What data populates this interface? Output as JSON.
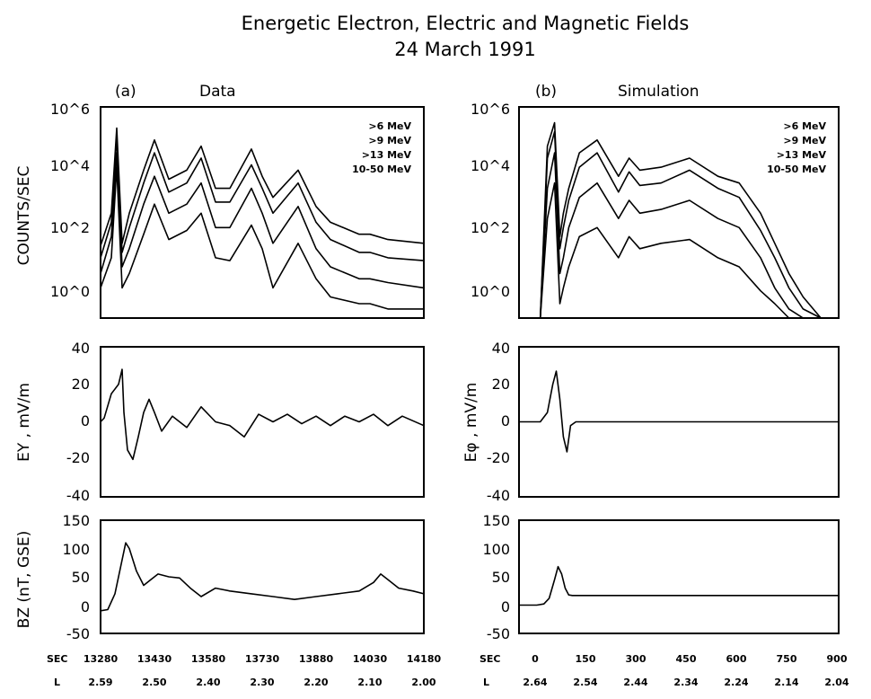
{
  "title_line1": "Energetic Electron, Electric and Magnetic Fields",
  "title_line2": "24 March 1991",
  "column_a": {
    "panel_label": "(a)",
    "heading": "Data"
  },
  "column_b": {
    "panel_label": "(b)",
    "heading": "Simulation"
  },
  "legend": [
    ">6 MeV",
    ">9 MeV",
    ">13 MeV",
    "10-50 MeV"
  ],
  "y_labels": {
    "counts": "COUNTS/SEC",
    "ey": "EY , mV/m",
    "ephi": "Eφ , mV/m",
    "bz": "BZ (nT, GSE)"
  },
  "y_ticks": {
    "counts": [
      "10^0",
      "10^2",
      "10^4",
      "10^6"
    ],
    "efield": [
      "40",
      "20",
      "0",
      "-20",
      "-40"
    ],
    "bfield": [
      "150",
      "100",
      "50",
      "0",
      "-50"
    ]
  },
  "x_axis_a": {
    "sec_label": "SEC",
    "l_label": "L",
    "sec_ticks": [
      "13280",
      "13430",
      "13580",
      "13730",
      "13880",
      "14030",
      "14180"
    ],
    "l_ticks": [
      "2.59",
      "2.50",
      "2.40",
      "2.30",
      "2.20",
      "2.10",
      "2.00"
    ]
  },
  "x_axis_b": {
    "sec_label": "SEC",
    "l_label": "L",
    "sec_ticks": [
      "0",
      "150",
      "300",
      "450",
      "600",
      "750",
      "900"
    ],
    "l_ticks": [
      "2.64",
      "2.54",
      "2.44",
      "2.34",
      "2.24",
      "2.14",
      "2.04"
    ]
  },
  "chart_data": [
    {
      "type": "line",
      "panel": "a-counts",
      "x": [
        13280,
        13310,
        13325,
        13340,
        13360,
        13400,
        13430,
        13470,
        13520,
        13560,
        13600,
        13640,
        13700,
        13730,
        13760,
        13830,
        13880,
        13920,
        14000,
        14030,
        14080,
        14180
      ],
      "series": [
        {
          "name": ">6 MeV",
          "values": [
            25,
            300,
            200000,
            30,
            300,
            8000,
            80000,
            4000,
            8000,
            50000,
            2000,
            2000,
            40000,
            5000,
            1000,
            8000,
            500,
            150,
            60,
            60,
            40,
            30
          ]
        },
        {
          "name": ">9 MeV",
          "values": [
            10,
            150,
            100000,
            15,
            100,
            3000,
            30000,
            1500,
            3000,
            20000,
            700,
            700,
            12000,
            2000,
            300,
            3000,
            150,
            40,
            15,
            15,
            10,
            8
          ]
        },
        {
          "name": ">13 MeV",
          "values": [
            3,
            50,
            30000,
            5,
            20,
            600,
            5000,
            300,
            600,
            3000,
            100,
            100,
            2000,
            300,
            30,
            500,
            20,
            5,
            2,
            2,
            1.5,
            1
          ]
        },
        {
          "name": "10-50 MeV",
          "values": [
            1,
            10,
            10000,
            1,
            3,
            60,
            600,
            40,
            80,
            300,
            10,
            8,
            120,
            20,
            1,
            30,
            2,
            0.5,
            0.3,
            0.3,
            0.2,
            0.2
          ]
        }
      ],
      "ylim": [
        0.1,
        1000000
      ],
      "yscale": "log"
    },
    {
      "type": "line",
      "panel": "b-counts",
      "x": [
        60,
        80,
        100,
        115,
        125,
        140,
        170,
        220,
        280,
        310,
        340,
        400,
        480,
        560,
        620,
        680,
        720,
        760,
        800,
        850,
        900
      ],
      "series": [
        {
          "name": ">6 MeV",
          "values": [
            0.1,
            50000,
            300000,
            50,
            300,
            2000,
            30000,
            80000,
            5000,
            20000,
            8000,
            10000,
            20000,
            5000,
            3000,
            300,
            30,
            3,
            0.5,
            0.1,
            0.1
          ]
        },
        {
          "name": ">9 MeV",
          "values": [
            0.1,
            20000,
            150000,
            20,
            100,
            800,
            10000,
            30000,
            1500,
            7000,
            2500,
            3000,
            8000,
            2000,
            1000,
            80,
            10,
            1,
            0.2,
            0.1,
            0.1
          ]
        },
        {
          "name": ">13 MeV",
          "values": [
            0.1,
            2000,
            30000,
            3,
            10,
            100,
            1000,
            3000,
            200,
            800,
            300,
            400,
            800,
            200,
            100,
            10,
            1,
            0.2,
            0.1,
            0.1,
            0.1
          ]
        },
        {
          "name": "10-50 MeV",
          "values": [
            0.1,
            200,
            3000,
            0.3,
            1,
            5,
            50,
            100,
            10,
            50,
            20,
            30,
            40,
            10,
            5,
            0.8,
            0.3,
            0.1,
            0.1,
            0.1,
            0.1
          ]
        }
      ],
      "ylim": [
        0.1,
        1000000
      ],
      "yscale": "log"
    },
    {
      "type": "line",
      "panel": "a-ey",
      "x": [
        13280,
        13290,
        13310,
        13330,
        13340,
        13345,
        13355,
        13370,
        13385,
        13400,
        13415,
        13430,
        13450,
        13480,
        13520,
        13560,
        13600,
        13640,
        13680,
        13720,
        13760,
        13800,
        13840,
        13880,
        13920,
        13960,
        14000,
        14040,
        14080,
        14120,
        14180
      ],
      "values": [
        0,
        2,
        15,
        20,
        28,
        5,
        -15,
        -20,
        -8,
        5,
        12,
        5,
        -5,
        3,
        -3,
        8,
        0,
        -2,
        -8,
        4,
        0,
        4,
        -1,
        3,
        -2,
        3,
        0,
        4,
        -2,
        3,
        -2
      ],
      "ylim": [
        -40,
        40
      ],
      "xlim": [
        13280,
        14180
      ]
    },
    {
      "type": "line",
      "panel": "b-ephi",
      "x": [
        0,
        60,
        80,
        95,
        105,
        115,
        125,
        135,
        145,
        160,
        900
      ],
      "values": [
        0,
        0,
        5,
        20,
        27,
        12,
        -8,
        -16,
        -2,
        0,
        0
      ],
      "ylim": [
        -40,
        40
      ],
      "xlim": [
        0,
        900
      ]
    },
    {
      "type": "line",
      "panel": "a-bz",
      "x": [
        13280,
        13300,
        13320,
        13340,
        13350,
        13360,
        13380,
        13400,
        13420,
        13440,
        13470,
        13500,
        13530,
        13560,
        13600,
        13640,
        13700,
        13760,
        13820,
        13880,
        13940,
        14000,
        14040,
        14060,
        14080,
        14110,
        14150,
        14180
      ],
      "values": [
        -10,
        -8,
        20,
        80,
        110,
        100,
        60,
        35,
        45,
        55,
        50,
        48,
        30,
        15,
        30,
        25,
        20,
        15,
        10,
        15,
        20,
        25,
        40,
        55,
        45,
        30,
        25,
        20
      ],
      "ylim": [
        -50,
        150
      ],
      "xlim": [
        13280,
        14180
      ]
    },
    {
      "type": "line",
      "panel": "b-bz",
      "x": [
        0,
        50,
        70,
        85,
        100,
        110,
        120,
        130,
        140,
        150,
        900
      ],
      "values": [
        0,
        0,
        2,
        12,
        45,
        68,
        55,
        30,
        18,
        17,
        17
      ],
      "ylim": [
        -50,
        150
      ],
      "xlim": [
        0,
        900
      ]
    }
  ]
}
